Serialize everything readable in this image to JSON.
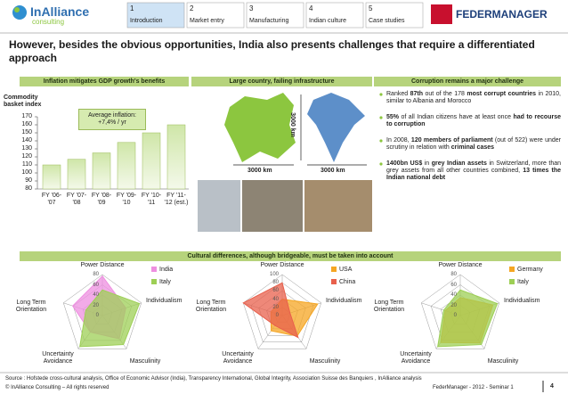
{
  "header": {
    "logo": "InAlliance",
    "logo_sub": "consulting",
    "tabs": [
      {
        "number": 1,
        "label": "Introduction"
      },
      {
        "number": 2,
        "label": "Market entry"
      },
      {
        "number": 3,
        "label": "Manufacturing"
      },
      {
        "number": 4,
        "label": "Indian culture"
      },
      {
        "number": 5,
        "label": "Case studies"
      }
    ],
    "partner": "FEDERMANAGER"
  },
  "title": "However, besides the obvious opportunities, India also presents challenges that require a differentiated approach",
  "sections": [
    "Inflation mitigates GDP growth's benefits",
    "Large country, failing infrastructure",
    "Corruption remains a major challenge",
    "Cultural differences, although bridgeable, must be taken into account"
  ],
  "map": {
    "labels": [
      "3000 km",
      "3000 km",
      "3000 km"
    ]
  },
  "bullets": [
    [
      {
        "text": "Ranked ",
        "bold": false
      },
      {
        "text": "87th",
        "bold": true
      },
      {
        "text": " out of the 178 ",
        "bold": false
      },
      {
        "text": "most corrupt countries",
        "bold": true
      },
      {
        "text": " in 2010, similar to Albania and Morocco",
        "bold": false
      }
    ],
    [
      {
        "text": "55%",
        "bold": true
      },
      {
        "text": " of all Indian citizens have at least once ",
        "bold": false
      },
      {
        "text": "had to recourse to corruption",
        "bold": true
      }
    ],
    [
      {
        "text": "In 2008, ",
        "bold": false
      },
      {
        "text": "120 members of parliament",
        "bold": true
      },
      {
        "text": " (out of 522) were under scrutiny in relation with ",
        "bold": false
      },
      {
        "text": "criminal cases",
        "bold": true
      }
    ],
    [
      {
        "text": "1400bn US$",
        "bold": true
      },
      {
        "text": " in ",
        "bold": false
      },
      {
        "text": "grey Indian assets",
        "bold": true
      },
      {
        "text": " in Switzerland, more than grey assets from all other countries combined, ",
        "bold": false
      },
      {
        "text": "13 times the Indian national debt",
        "bold": true
      }
    ]
  ],
  "chart_data": [
    {
      "type": "bar",
      "y_label": "Commodity basket index",
      "annotation": "Average inflation: +7,4% / yr",
      "categories": [
        "FY '06-'07",
        "FY '07-'08",
        "FY '08-'09",
        "FY '09-'10",
        "FY '10-'11",
        "FY '11-'12 (est.)"
      ],
      "values": [
        110,
        117,
        125,
        138,
        150,
        160
      ],
      "ylim": [
        80,
        170
      ],
      "yticks": [
        80,
        90,
        100,
        110,
        120,
        130,
        140,
        150,
        160,
        170
      ]
    },
    {
      "type": "radar",
      "axes": [
        "Power Distance",
        "Individualism",
        "Masculinity",
        "Uncertainty Avoidance",
        "Long Term Orientation"
      ],
      "rlim": [
        0,
        80
      ],
      "rticks": [
        0,
        20,
        40,
        60,
        80
      ],
      "series": [
        {
          "name": "India",
          "color": "#ee8fe0",
          "values": [
            77,
            48,
            56,
            40,
            61
          ]
        },
        {
          "name": "Italy",
          "color": "#9dcf55",
          "values": [
            50,
            76,
            70,
            75,
            34
          ]
        }
      ]
    },
    {
      "type": "radar",
      "axes": [
        "Power Distance",
        "Individualism",
        "Masculinity",
        "Uncertainty Avoidance",
        "Long Term Orientation"
      ],
      "rlim": [
        0,
        100
      ],
      "rticks": [
        0,
        20,
        40,
        60,
        80,
        100
      ],
      "series": [
        {
          "name": "USA",
          "color": "#f5a623",
          "values": [
            40,
            91,
            62,
            46,
            29
          ]
        },
        {
          "name": "China",
          "color": "#e8604c",
          "values": [
            80,
            20,
            66,
            30,
            100
          ]
        }
      ]
    },
    {
      "type": "radar",
      "axes": [
        "Power Distance",
        "Individualism",
        "Masculinity",
        "Uncertainty Avoidance",
        "Long Term Orientation"
      ],
      "rlim": [
        0,
        80
      ],
      "rticks": [
        0,
        20,
        40,
        60,
        80
      ],
      "series": [
        {
          "name": "Germany",
          "color": "#f5a623",
          "values": [
            35,
            67,
            66,
            65,
            31
          ]
        },
        {
          "name": "Italy",
          "color": "#9dcf55",
          "values": [
            50,
            76,
            70,
            75,
            34
          ]
        }
      ]
    }
  ],
  "footer": {
    "source": "Source : Hofstede cross-cultural analysis, Office of Economic Advisor (India), Transparency International, Global Integrity, Association Suisse des Banquiers , InAlliance analysis",
    "copyright": "© InAlliance Consulting – All rights reserved",
    "event": "FederManager - 2012 - Seminar 1",
    "page": 4
  }
}
